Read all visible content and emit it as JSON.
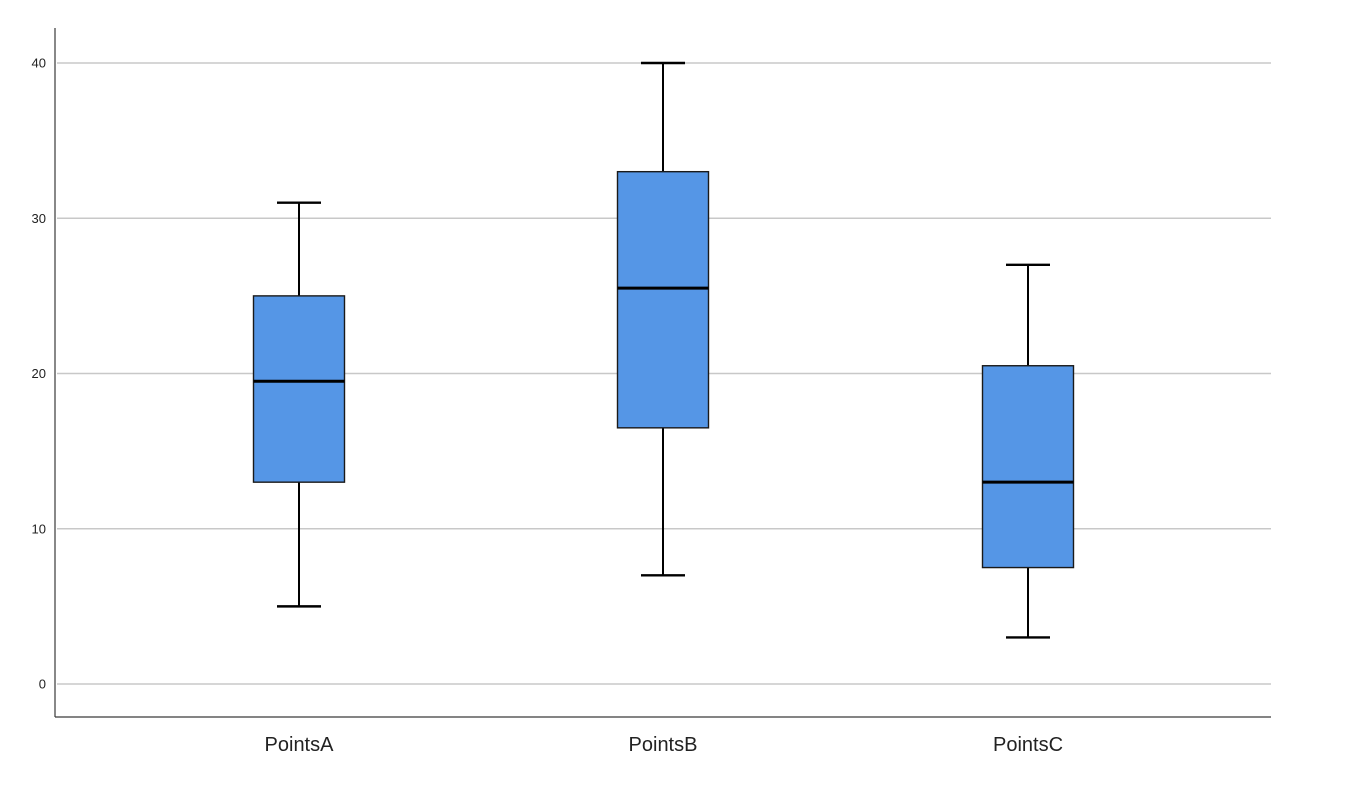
{
  "chart_data": {
    "type": "boxplot",
    "title": "",
    "xlabel": "",
    "ylabel": "",
    "ylim": [
      -2,
      42
    ],
    "yticks": [
      0,
      10,
      20,
      30,
      40
    ],
    "grid": true,
    "box_color": "#5596e6",
    "categories": [
      "PointsA",
      "PointsB",
      "PointsC"
    ],
    "boxes": [
      {
        "label": "PointsA",
        "min": 5,
        "q1": 13,
        "median": 19.5,
        "q3": 25,
        "max": 31
      },
      {
        "label": "PointsB",
        "min": 7,
        "q1": 16.5,
        "median": 25.5,
        "q3": 33,
        "max": 40
      },
      {
        "label": "PointsC",
        "min": 3,
        "q1": 7.5,
        "median": 13,
        "q3": 20.5,
        "max": 27
      }
    ]
  }
}
